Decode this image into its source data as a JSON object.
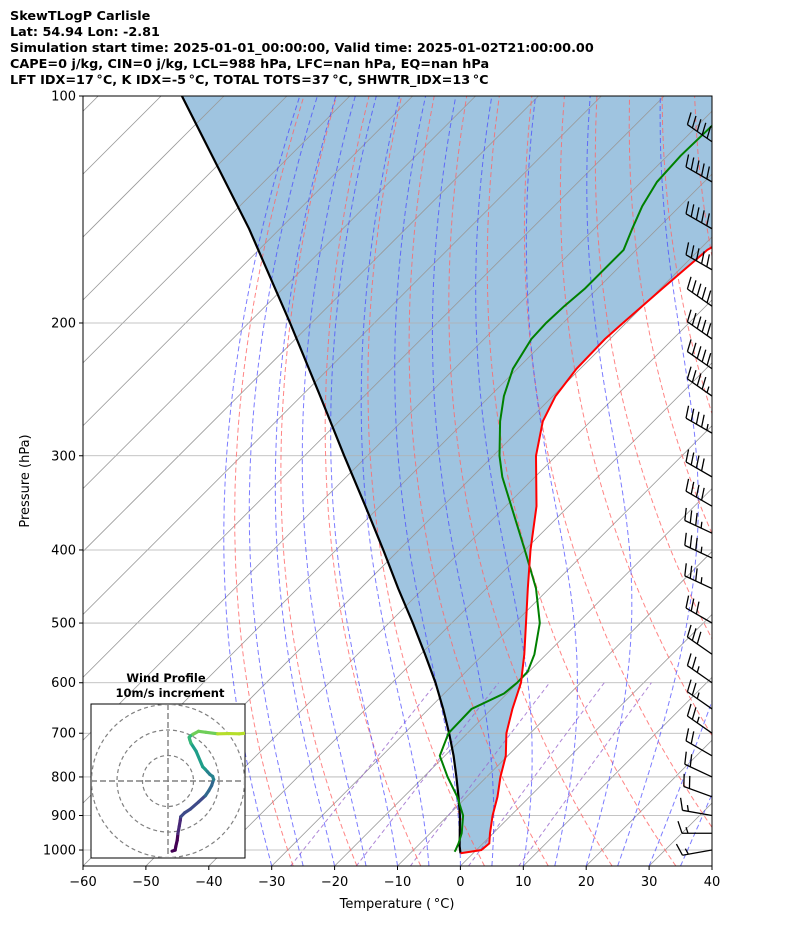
{
  "header": {
    "title": "SkewTLogP Carlisle",
    "location": "Lat: 54.94   Lon: -2.81",
    "times": "Simulation start time: 2025-01-01_00:00:00, Valid time: 2025-01-02T21:00:00.00",
    "indices1": "CAPE=0 j/kg, CIN=0 j/kg, LCL=988 hPa, LFC=nan hPa, EQ=nan hPa",
    "indices2": "LFT IDX=17 °C, K IDX=-5 °C, TOTAL TOTS=37 °C, SHWTR_IDX=13 °C"
  },
  "chart_data": {
    "type": "line",
    "title": "SkewTLogP Carlisle",
    "xlabel": "Temperature ( °C)",
    "ylabel": "Pressure (hPa)",
    "xlim": [
      -60,
      40
    ],
    "ylim": [
      1050,
      100
    ],
    "yscale": "log",
    "skew": 45,
    "grid": true,
    "xticks": [
      -60,
      -50,
      -40,
      -30,
      -20,
      -10,
      0,
      10,
      20,
      30,
      40
    ],
    "xtick_labels": [
      "−60",
      "−50",
      "−40",
      "−30",
      "−20",
      "−10",
      "0",
      "10",
      "20",
      "30",
      "40"
    ],
    "yticks": [
      1000,
      900,
      800,
      700,
      600,
      500,
      400,
      300,
      200,
      100
    ],
    "ytick_labels": [
      "1000",
      "900",
      "800",
      "700",
      "600",
      "500",
      "400",
      "300",
      "200",
      "100"
    ],
    "colors": {
      "temperature": "#ff0000",
      "dewpoint": "#008000",
      "parcel": "#000000",
      "fill": "#7fb0d5",
      "dry_adiabat": "#ff6666",
      "moist_adiabat": "#4444ff",
      "mixing_ratio": "#9966cc",
      "isotherm": "#999999"
    },
    "series": [
      {
        "role": "temperature",
        "pressure": [
          1010,
          1000,
          980,
          950,
          900,
          850,
          800,
          750,
          700,
          650,
          600,
          550,
          500,
          450,
          400,
          350,
          300,
          270,
          250,
          230,
          210,
          200,
          180,
          160,
          150,
          140,
          130,
          120,
          110,
          100
        ],
        "value": [
          -2.0,
          0.8,
          1.0,
          -0.5,
          -2.9,
          -5.1,
          -7.8,
          -10.3,
          -13.8,
          -16.7,
          -19.5,
          -23.5,
          -28.2,
          -33.4,
          -39.1,
          -45.1,
          -53.2,
          -57.6,
          -59.6,
          -60.6,
          -60.8,
          -60.5,
          -59.7,
          -58.7,
          -56.3,
          -54.5,
          -52.8,
          -49.2,
          -47.0,
          -44.3
        ]
      },
      {
        "role": "dewpoint",
        "pressure": [
          1005,
          1000,
          980,
          950,
          900,
          850,
          800,
          750,
          700,
          650,
          620,
          600,
          580,
          550,
          500,
          450,
          400,
          350,
          320,
          300,
          270,
          250,
          230,
          210,
          200,
          190,
          180,
          160,
          150,
          140,
          130,
          120,
          110,
          100
        ],
        "value": [
          -3.2,
          -3.3,
          -3.9,
          -5.0,
          -7.6,
          -11.5,
          -16.2,
          -20.8,
          -23.0,
          -23.2,
          -20.5,
          -20.1,
          -20.2,
          -21.9,
          -26.0,
          -32.1,
          -40.0,
          -49.1,
          -55.2,
          -59.0,
          -64.4,
          -67.8,
          -70.7,
          -72.5,
          -72.7,
          -72.5,
          -72.0,
          -72.0,
          -74.0,
          -76.0,
          -77.5,
          -77.9,
          -77.7,
          -77.6
        ]
      },
      {
        "role": "parcel",
        "pressure": [
          1010,
          988,
          950,
          900,
          850,
          800,
          750,
          700,
          650,
          600,
          550,
          500,
          450,
          400,
          350,
          300,
          250,
          200,
          150,
          100
        ],
        "value": [
          -2.0,
          -3.3,
          -5.3,
          -8.1,
          -11.3,
          -14.8,
          -18.6,
          -22.9,
          -27.7,
          -33.1,
          -39.3,
          -46.2,
          -54.0,
          -62.5,
          -72.3,
          -83.7,
          -97.0,
          -113.4,
          -134.9,
          -166.7
        ]
      }
    ],
    "wind_barbs": {
      "pressure": [
        100,
        115,
        130,
        150,
        170,
        190,
        210,
        230,
        250,
        280,
        320,
        350,
        380,
        410,
        450,
        500,
        550,
        600,
        650,
        700,
        750,
        800,
        850,
        900,
        950,
        1000
      ],
      "speed_kt": [
        75,
        75,
        70,
        65,
        60,
        55,
        50,
        50,
        45,
        45,
        40,
        40,
        35,
        35,
        35,
        30,
        30,
        25,
        25,
        25,
        20,
        20,
        20,
        15,
        15,
        15
      ],
      "direction_deg": [
        310,
        305,
        300,
        300,
        300,
        305,
        305,
        305,
        305,
        300,
        300,
        300,
        295,
        295,
        295,
        300,
        305,
        305,
        305,
        305,
        300,
        295,
        290,
        280,
        270,
        260
      ]
    },
    "hodograph": {
      "title": "Wind Profile",
      "subtitle": "10m/s increment",
      "rings_ms": [
        10,
        20,
        30
      ],
      "colormap": "viridis",
      "u": [
        1.6,
        2.8,
        3.1,
        3.6,
        3.9,
        4.4,
        4.8,
        5.0,
        6.5,
        8.8,
        12.0,
        14.7,
        16.0,
        17.1,
        17.9,
        17.5,
        16.4,
        15.5,
        14.6,
        13.6,
        11.0,
        9.0,
        8.5,
        8.3,
        8.6,
        9.8,
        12.0,
        14.9,
        19.5,
        24.0,
        27.9,
        31.2
      ],
      "v": [
        -27.5,
        -27.1,
        -25.5,
        -23.3,
        -20.6,
        -17.8,
        -15.5,
        -14.0,
        -12.5,
        -11.0,
        -8.2,
        -5.7,
        -3.8,
        -1.8,
        0.6,
        1.8,
        2.6,
        3.6,
        4.6,
        5.6,
        11.7,
        14.8,
        16.3,
        17.1,
        17.5,
        18.3,
        19.5,
        19.1,
        18.5,
        18.6,
        18.5,
        18.8
      ]
    }
  }
}
